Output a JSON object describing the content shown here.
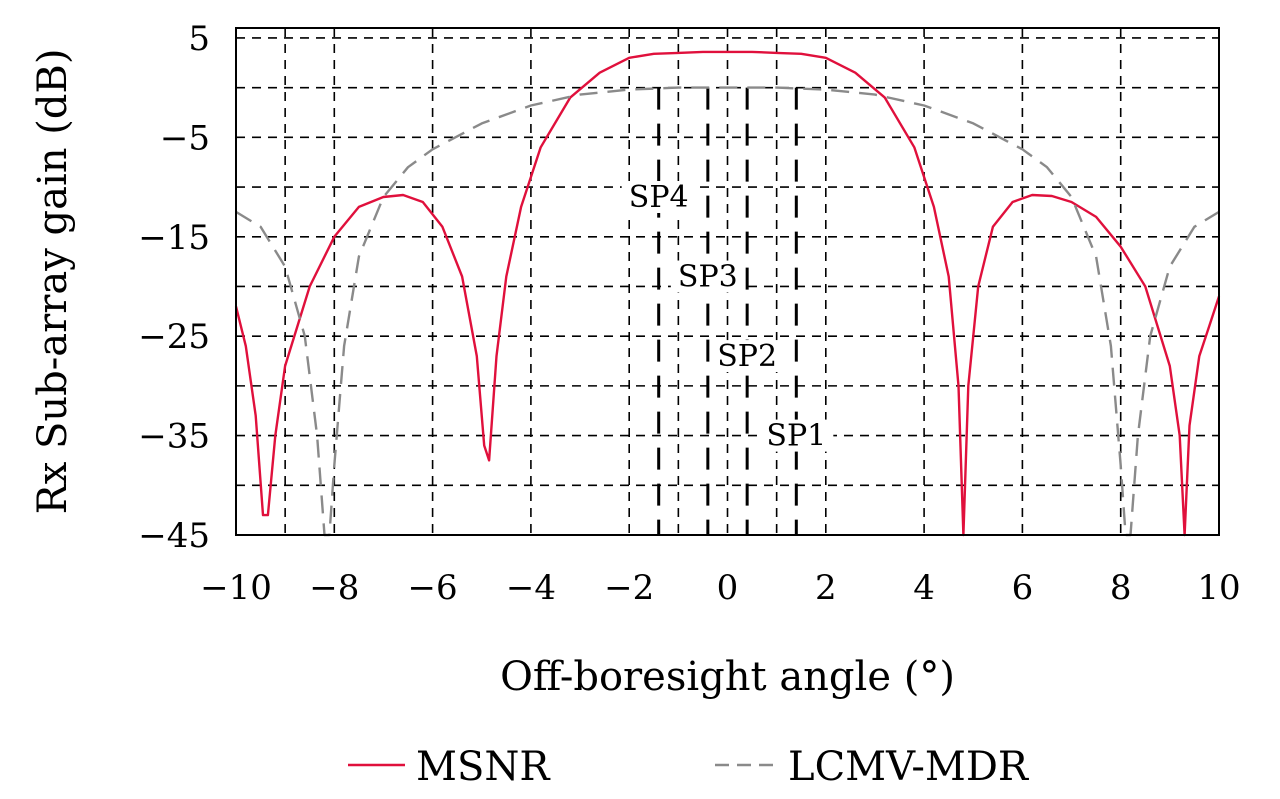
{
  "chart_data": {
    "type": "line",
    "xlabel": "Off-boresight angle (°)",
    "ylabel": "Rx Sub-array gain (dB)",
    "xlim": [
      -10,
      10
    ],
    "ylim": [
      -45,
      6
    ],
    "x_ticks": [
      -10,
      -8,
      -6,
      -4,
      -2,
      0,
      2,
      4,
      6,
      8,
      10
    ],
    "x_tick_labels": [
      "−10",
      "−8",
      "−6",
      "−4",
      "−2",
      "0",
      "2",
      "4",
      "6",
      "8",
      "10"
    ],
    "y_label_ticks": [
      5,
      -5,
      -15,
      -25,
      -35,
      -45
    ],
    "y_tick_labels": [
      "5",
      "−5",
      "−15",
      "−25",
      "−35",
      "−45"
    ],
    "y_grid": [
      5,
      0,
      -5,
      -10,
      -15,
      -20,
      -25,
      -30,
      -35,
      -40,
      -45
    ],
    "x_grid": [
      -10,
      -9,
      -8,
      -6,
      -4,
      -2,
      -1,
      0,
      1,
      2,
      4,
      6,
      8,
      10
    ],
    "grid": true,
    "legend_position": "bottom",
    "series": [
      {
        "name": "MSNR",
        "color": "#e0103c",
        "style": "solid",
        "x": [
          -10,
          -9.8,
          -9.6,
          -9.45,
          -9.35,
          -9.2,
          -9.0,
          -8.5,
          -8.0,
          -7.5,
          -7.0,
          -6.6,
          -6.2,
          -5.8,
          -5.4,
          -5.1,
          -4.95,
          -4.85,
          -4.7,
          -4.5,
          -4.2,
          -3.8,
          -3.2,
          -2.6,
          -2.0,
          -1.5,
          -1.0,
          -0.5,
          0,
          0.5,
          1.0,
          1.5,
          2.0,
          2.6,
          3.2,
          3.8,
          4.2,
          4.5,
          4.7,
          4.8,
          4.9,
          5.1,
          5.4,
          5.8,
          6.2,
          6.6,
          7.0,
          7.5,
          8.0,
          8.5,
          9.0,
          9.2,
          9.3,
          9.4,
          9.6,
          9.8,
          10
        ],
        "y": [
          -22,
          -26,
          -33,
          -43,
          -43,
          -35,
          -28,
          -20,
          -15,
          -12,
          -11,
          -10.8,
          -11.5,
          -14,
          -19,
          -27,
          -36,
          -37.5,
          -27,
          -19,
          -12,
          -6,
          -1,
          1.5,
          3.0,
          3.4,
          3.5,
          3.6,
          3.6,
          3.6,
          3.5,
          3.4,
          3.0,
          1.5,
          -1,
          -6,
          -12,
          -19,
          -30,
          -45,
          -30,
          -20,
          -14,
          -11.5,
          -10.8,
          -10.9,
          -11.5,
          -13,
          -16,
          -20,
          -28,
          -35,
          -45,
          -34,
          -27,
          -24,
          -21
        ]
      },
      {
        "name": "LCMV-MDR",
        "color": "#8a8a8a",
        "style": "dashed",
        "x": [
          -10,
          -9.5,
          -9.0,
          -8.6,
          -8.35,
          -8.2,
          -8.1,
          -8.0,
          -7.8,
          -7.5,
          -7.0,
          -6.5,
          -6.0,
          -5.0,
          -4.0,
          -3.0,
          -2.0,
          -1.0,
          0,
          1.0,
          2.0,
          3.0,
          4.0,
          5.0,
          6.0,
          6.5,
          7.0,
          7.5,
          7.8,
          8.0,
          8.1,
          8.2,
          8.35,
          8.6,
          9.0,
          9.5,
          10
        ],
        "y": [
          -12.5,
          -14,
          -18,
          -25,
          -35,
          -45,
          -45,
          -38,
          -26,
          -17,
          -11,
          -8,
          -6.2,
          -3.6,
          -1.8,
          -0.7,
          -0.2,
          0,
          0,
          0,
          -0.2,
          -0.7,
          -1.8,
          -3.6,
          -6.2,
          -8,
          -11,
          -17,
          -26,
          -38,
          -45,
          -45,
          -35,
          -25,
          -18,
          -14,
          -12.5
        ]
      }
    ],
    "steering_lines": [
      {
        "x": -1.4,
        "y_from": 0,
        "y_to": -45,
        "label": "SP4",
        "label_x": -1.4,
        "label_y": -11
      },
      {
        "x": -0.4,
        "y_from": 0,
        "y_to": -45,
        "label": "SP3",
        "label_x": -0.4,
        "label_y": -19
      },
      {
        "x": 0.4,
        "y_from": 0,
        "y_to": -45,
        "label": "SP2",
        "label_x": 0.4,
        "label_y": -27
      },
      {
        "x": 1.4,
        "y_from": 0,
        "y_to": -45,
        "label": "SP1",
        "label_x": 1.4,
        "label_y": -35
      }
    ]
  },
  "legend": [
    {
      "name": "MSNR",
      "color": "#e0103c",
      "style": "solid"
    },
    {
      "name": "LCMV-MDR",
      "color": "#8a8a8a",
      "style": "dashed"
    }
  ]
}
